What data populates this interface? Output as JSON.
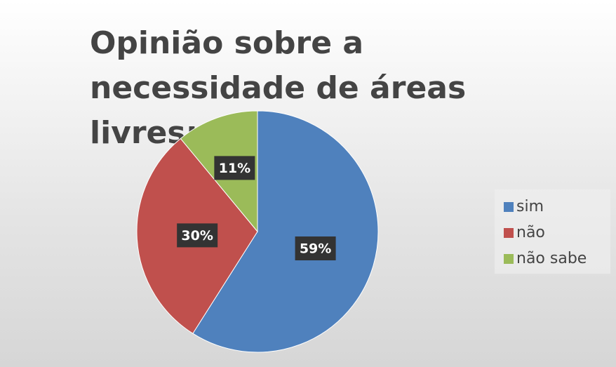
{
  "chart_data": {
    "type": "pie",
    "title": "Opinião sobre a  necessidade de áreas livres:",
    "categories": [
      "sim",
      "não",
      "não sabe"
    ],
    "values": [
      59,
      30,
      11
    ],
    "value_labels": [
      "59%",
      "30%",
      "11%"
    ],
    "colors": [
      "#4f81bd",
      "#c0504d",
      "#9bbb59"
    ],
    "legend": "right"
  }
}
